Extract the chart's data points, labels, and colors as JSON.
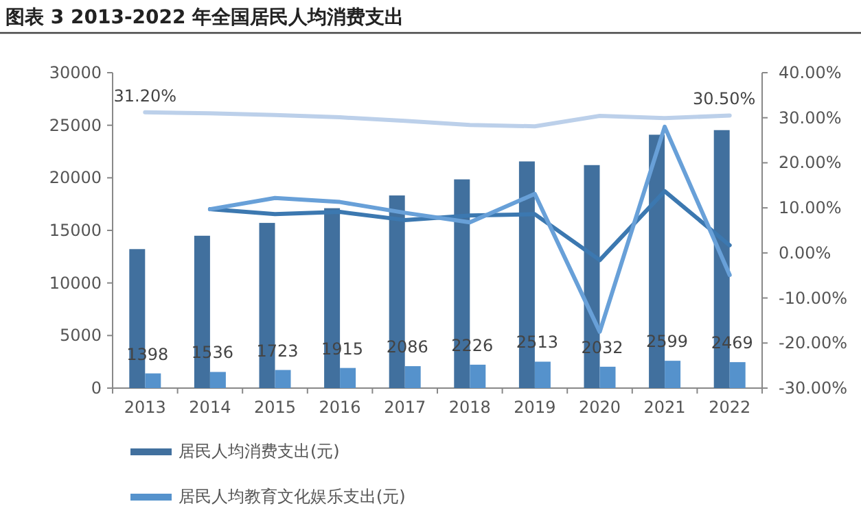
{
  "chart_data": {
    "type": "bar",
    "title": "图表 3 2013-2022 年全国居民人均消费支出",
    "categories": [
      "2013",
      "2014",
      "2015",
      "2016",
      "2017",
      "2018",
      "2019",
      "2020",
      "2021",
      "2022"
    ],
    "series": [
      {
        "name": "居民人均消费支出(元)",
        "color": "#41709e",
        "values": [
          13220,
          14491,
          15712,
          17111,
          18322,
          19853,
          21559,
          21210,
          24100,
          24538
        ]
      },
      {
        "name": "居民人均教育文化娱乐支出(元)",
        "color": "#5592cc",
        "values": [
          1398,
          1536,
          1723,
          1915,
          2086,
          2226,
          2513,
          2032,
          2599,
          2469
        ],
        "value_labels": [
          "1398",
          "1536",
          "1723",
          "1915",
          "2086",
          "2226",
          "2513",
          "2032",
          "2599",
          "2469"
        ]
      },
      {
        "type": "line",
        "axis": "y2",
        "color": "#bcd0ea",
        "values": [
          31.2,
          31.0,
          30.6,
          30.1,
          29.3,
          28.4,
          28.1,
          30.4,
          29.9,
          30.5
        ],
        "value_labels": [
          "31.20%",
          null,
          null,
          null,
          null,
          null,
          null,
          null,
          null,
          "30.50%"
        ]
      },
      {
        "type": "line",
        "axis": "y2",
        "color": "#3c78b0",
        "values": [
          null,
          9.7,
          8.6,
          9.1,
          7.3,
          8.3,
          8.6,
          -1.6,
          13.7,
          1.7
        ]
      },
      {
        "type": "line",
        "axis": "y2",
        "color": "#68a0d8",
        "values": [
          null,
          9.7,
          12.2,
          11.3,
          8.9,
          6.8,
          13.1,
          -17.5,
          28.0,
          -4.9
        ]
      }
    ],
    "ylim": [
      0,
      30000
    ],
    "yticks": [
      0,
      5000,
      10000,
      15000,
      20000,
      25000,
      30000
    ],
    "y2lim": [
      -30,
      40
    ],
    "y2ticks": [
      {
        "value": -30,
        "label": "-30.00%"
      },
      {
        "value": -20,
        "label": "-20.00%"
      },
      {
        "value": -10,
        "label": "-10.00%"
      },
      {
        "value": 0,
        "label": "0.00%"
      },
      {
        "value": 10,
        "label": "10.00%"
      },
      {
        "value": 20,
        "label": "20.00%"
      },
      {
        "value": 30,
        "label": "30.00%"
      },
      {
        "value": 40,
        "label": "40.00%"
      }
    ],
    "legend": "bottom",
    "marker": "none",
    "grid": false
  }
}
